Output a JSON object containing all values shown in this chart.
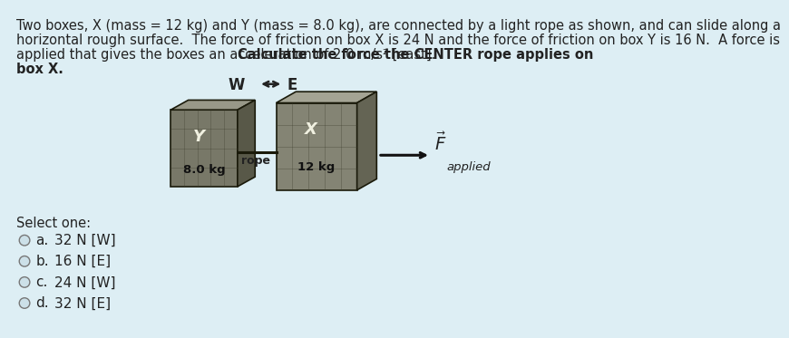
{
  "background_color": "#ddeef4",
  "title_line1": "Two boxes, X (mass = 12 kg) and Y (mass = 8.0 kg), are connected by a light rope as shown, and can slide along a",
  "title_line2": "horizontal rough surface.  The force of friction on box X is 24 N and the force of friction on box Y is 16 N.  A force is",
  "title_line3_normal": "applied that gives the boxes an acceleration of 2.0 m/s² [east].  ",
  "title_line3_bold": "Calculate the force the CENTER rope applies on",
  "title_line4_bold": "box X.",
  "select_one": "Select one:",
  "options": [
    [
      "a.",
      "32 N [W]"
    ],
    [
      "b.",
      "16 N [E]"
    ],
    [
      "c.",
      "24 N [W]"
    ],
    [
      "d.",
      "32 N [E]"
    ]
  ],
  "box_Y_label": "Y",
  "box_Y_mass": "8.0 kg",
  "box_X_label": "X",
  "box_X_mass": "12 kg",
  "rope_label": "rope",
  "dir_W": "W",
  "dir_E": "E",
  "F_subscript": "applied",
  "text_color": "#222222",
  "body_fontsize": 10.5,
  "options_fontsize": 11,
  "box_front_Y_color": "#787868",
  "box_top_Y_color": "#989888",
  "box_right_Y_color": "#585848",
  "box_front_X_color": "#848474",
  "box_top_X_color": "#a4a494",
  "box_right_X_color": "#646454",
  "box_edge_color": "#1a1a0a",
  "rope_color": "#1a1a0a",
  "arrow_color": "#111111"
}
